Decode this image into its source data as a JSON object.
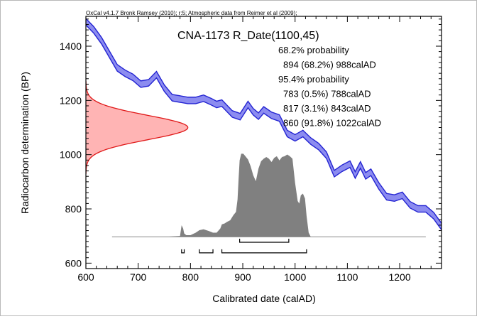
{
  "chart_data": {
    "type": "area",
    "credit": "OxCal v4.1.7 Bronk Ramsey (2010); r:5; Atmospheric data from Reimer et al (2009);",
    "title": "CNA-1173 R_Date(1100,45)",
    "xlabel": "Calibrated date (calAD)",
    "ylabel": "Radiocarbon determination (BP)",
    "xlim": [
      600,
      1280
    ],
    "ylim": [
      580,
      1510
    ],
    "x_ticks": [
      "600",
      "700",
      "800",
      "900",
      "1000",
      "1100",
      "1200"
    ],
    "y_ticks": [
      "600",
      "800",
      "1000",
      "1200",
      "1400"
    ],
    "results": [
      "68.2% probability",
      "894 (68.2%) 988calAD",
      "95.4% probability",
      "783 (0.5%) 788calAD",
      "817 (3.1%) 843calAD",
      "860 (91.8%) 1022calAD"
    ],
    "radiocarbon_date": {
      "mean_bp": 1100,
      "sd": 45
    },
    "colors": {
      "curve_fill": "#8c8cf0",
      "curve_line": "#2323d2",
      "measurement_fill": "#ffb4b4",
      "measurement_line": "#e01818",
      "posterior_fill": "#808080"
    },
    "calibration_curve": {
      "calAD": [
        600,
        615,
        630,
        645,
        660,
        675,
        690,
        705,
        720,
        735,
        750,
        765,
        780,
        795,
        810,
        825,
        840,
        850,
        860,
        870,
        880,
        895,
        910,
        920,
        930,
        940,
        955,
        970,
        985,
        1000,
        1015,
        1030,
        1045,
        1060,
        1075,
        1090,
        1105,
        1115,
        1125,
        1135,
        1145,
        1160,
        1175,
        1190,
        1205,
        1220,
        1235,
        1250,
        1265,
        1280
      ],
      "bp": [
        1490,
        1460,
        1420,
        1370,
        1320,
        1300,
        1285,
        1260,
        1265,
        1295,
        1245,
        1210,
        1205,
        1200,
        1200,
        1208,
        1195,
        1185,
        1190,
        1170,
        1150,
        1140,
        1185,
        1158,
        1142,
        1165,
        1145,
        1135,
        1078,
        1062,
        1078,
        1050,
        1030,
        998,
        930,
        950,
        965,
        925,
        962,
        922,
        935,
        885,
        845,
        840,
        850,
        815,
        800,
        800,
        775,
        735
      ],
      "band_halfwidth_bp": 12
    },
    "measurement": {
      "shape": "gaussian",
      "mean_bp": 1100,
      "sd": 45,
      "peak_x_calAD": 795
    },
    "posterior": {
      "calAD": [
        650,
        700,
        750,
        780,
        783,
        786,
        788,
        792,
        800,
        810,
        817,
        825,
        835,
        843,
        850,
        857,
        860,
        865,
        870,
        876,
        882,
        887,
        890,
        892,
        894,
        897,
        901,
        905,
        910,
        915,
        920,
        925,
        930,
        935,
        940,
        945,
        950,
        955,
        960,
        965,
        970,
        975,
        980,
        985,
        990,
        995,
        1000,
        1005,
        1008,
        1011,
        1015,
        1019,
        1022,
        1026,
        1030,
        1050,
        1100,
        1200,
        1250
      ],
      "density": [
        0,
        0,
        0,
        0.01,
        0.14,
        0.1,
        0.04,
        0.02,
        0.02,
        0.05,
        0.08,
        0.09,
        0.07,
        0.05,
        0.05,
        0.1,
        0.15,
        0.16,
        0.18,
        0.2,
        0.26,
        0.3,
        0.45,
        0.7,
        0.92,
        1.0,
        1.0,
        0.97,
        0.93,
        0.85,
        0.74,
        0.67,
        0.82,
        0.91,
        0.94,
        0.96,
        0.94,
        0.9,
        0.95,
        0.97,
        0.92,
        0.96,
        0.97,
        0.99,
        0.97,
        0.94,
        0.65,
        0.43,
        0.4,
        0.5,
        0.52,
        0.46,
        0.25,
        0.05,
        0,
        0,
        0,
        0,
        0
      ]
    },
    "ranges": {
      "sigma1": [
        [
          894,
          988
        ]
      ],
      "sigma2": [
        [
          783,
          788
        ],
        [
          817,
          843
        ],
        [
          860,
          1022
        ]
      ]
    }
  }
}
